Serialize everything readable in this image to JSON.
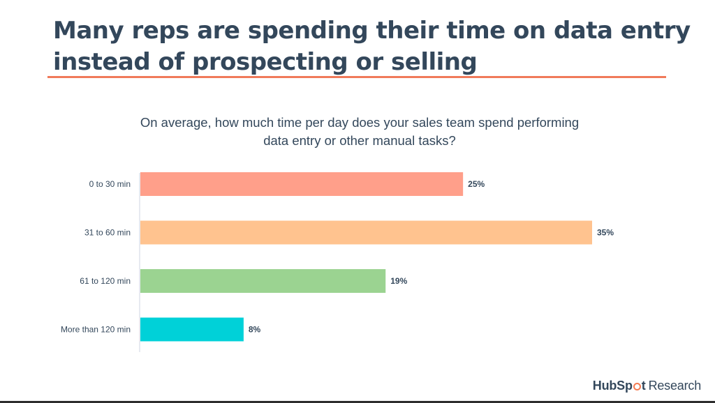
{
  "slide": {
    "headline_line1": "Many reps are spending their time on data entry",
    "headline_line2": "instead of prospecting or selling",
    "question_line1": "On average, how much time per day does your sales team spend performing",
    "question_line2": "data entry or other manual tasks?",
    "accent_color": "#f07a5a",
    "text_color": "#33475b"
  },
  "brand": {
    "hub": "HubSp",
    "t": "t",
    "research": "Research",
    "logo_icon": "sprocket-icon"
  },
  "chart_data": {
    "type": "bar",
    "orientation": "horizontal",
    "categories": [
      "0 to 30 min",
      "31 to 60 min",
      "61 to 120 min",
      "More than 120 min"
    ],
    "values": [
      25,
      35,
      19,
      8
    ],
    "value_labels": [
      "25%",
      "35%",
      "19%",
      "8%"
    ],
    "colors": [
      "#ff9f8a",
      "#ffc38f",
      "#9bd391",
      "#00d1d8"
    ],
    "xlim": [
      0,
      35
    ],
    "grid": false,
    "legend": "none",
    "title": "On average, how much time per day does your sales team spend performing data entry or other manual tasks?"
  }
}
